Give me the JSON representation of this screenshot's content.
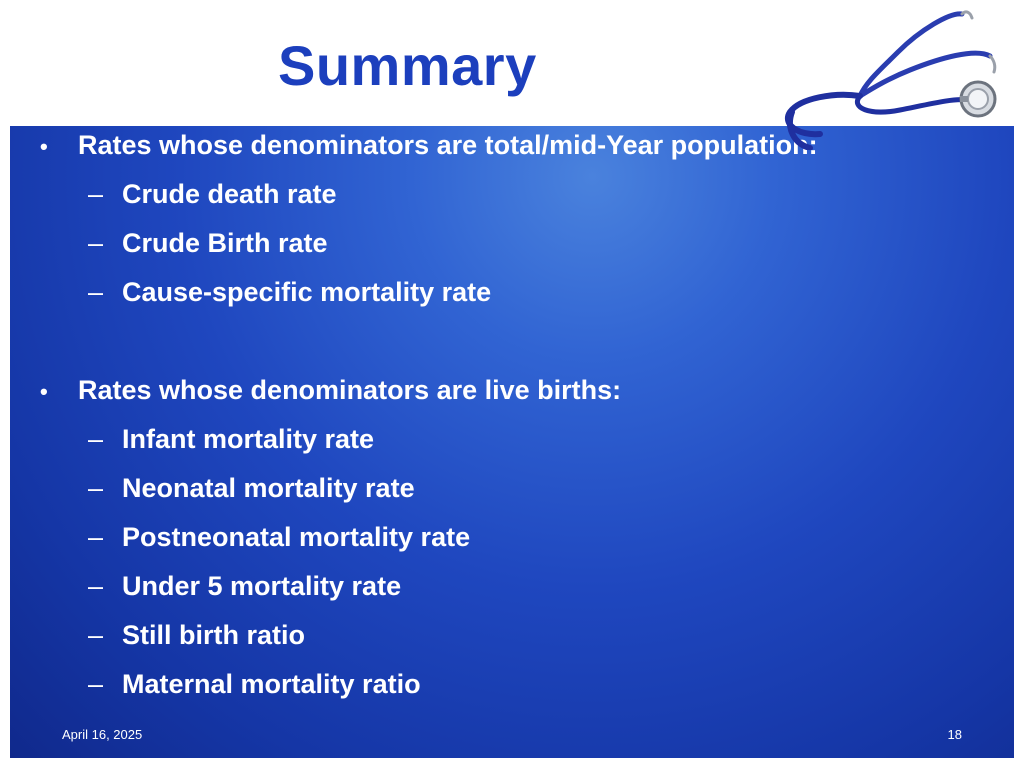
{
  "slide": {
    "title": "Summary",
    "sections": [
      {
        "heading": "Rates whose denominators are total/mid-Year population:",
        "items": [
          "Crude death rate",
          "Crude Birth rate",
          "Cause-specific mortality rate"
        ]
      },
      {
        "heading": "Rates whose denominators are live births:",
        "items": [
          "Infant mortality rate",
          "Neonatal mortality rate",
          "Postneonatal mortality rate",
          "Under 5 mortality rate",
          "Still birth ratio",
          "Maternal mortality ratio"
        ]
      }
    ],
    "footer": {
      "date": "April 16, 2025",
      "page_number": "18"
    }
  },
  "icons": {
    "bullet": "•",
    "dash": "–",
    "decoration": "stethoscope-icon"
  },
  "colors": {
    "title": "#1c3fbd",
    "panel_light": "#4a82dd",
    "panel_dark": "#10298c",
    "text": "#ffffff"
  }
}
